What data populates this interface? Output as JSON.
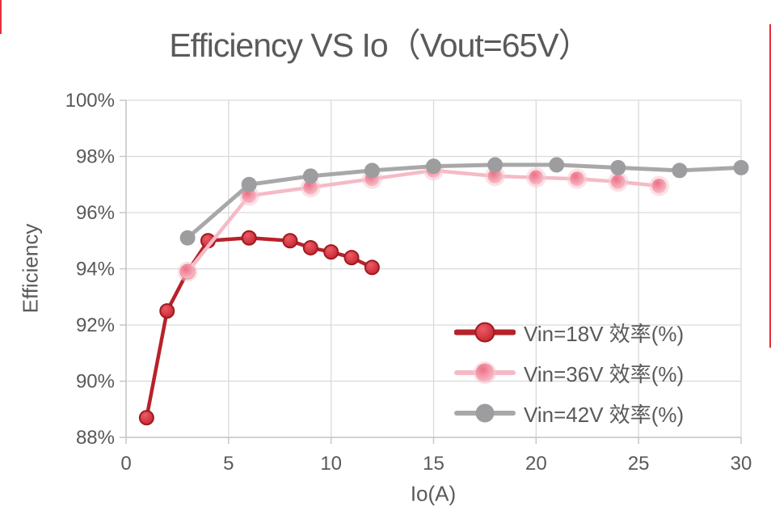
{
  "page": {
    "title": "Efficiency VS Io（Vout=65V）"
  },
  "colors": {
    "background": "#ffffff",
    "title_text": "#5a5a5a",
    "tick_label": "#595959",
    "gridline": "#dadada",
    "axis_line": "#c6c6c6",
    "edge_artifact": "#e2303b",
    "series_red": "#b7222a",
    "series_pink": "#f5bac6",
    "series_gray": "#a8a8a8"
  },
  "chart_data": {
    "type": "line",
    "title": "Efficiency VS Io（Vout=65V）",
    "xlabel": "Io(A)",
    "ylabel": "Efficiency",
    "xlim": [
      0,
      30
    ],
    "ylim": [
      88,
      100
    ],
    "x_ticks": [
      0,
      5,
      10,
      15,
      20,
      25,
      30
    ],
    "x_tick_labels": [
      "0",
      "5",
      "10",
      "15",
      "20",
      "25",
      "30"
    ],
    "y_ticks": [
      88,
      90,
      92,
      94,
      96,
      98,
      100
    ],
    "y_tick_labels": [
      "88%",
      "90%",
      "92%",
      "94%",
      "96%",
      "98%",
      "100%"
    ],
    "grid": true,
    "legend_position": "inside lower right",
    "series": [
      {
        "name": "Vin=18V 效率(%)",
        "x": [
          1,
          2,
          3,
          4,
          6,
          8,
          9,
          10,
          11,
          12
        ],
        "values": [
          88.7,
          92.5,
          93.9,
          95.0,
          95.1,
          95.0,
          94.75,
          94.6,
          94.4,
          94.05
        ],
        "line_color": "#b7222a",
        "line_width": 4.5,
        "marker_center": "#ec5b67",
        "marker_edge": "#c22129",
        "marker_stroke": "#9d1b21",
        "marker_radius": 8.5,
        "glow": false
      },
      {
        "name": "Vin=36V 效率(%)",
        "x": [
          3,
          6,
          9,
          12,
          15,
          18,
          20,
          22,
          24,
          26
        ],
        "values": [
          93.9,
          96.6,
          96.9,
          97.2,
          97.5,
          97.3,
          97.25,
          97.2,
          97.1,
          96.95
        ],
        "line_color": "#f5bac6",
        "line_width": 4.5,
        "marker_center": "#ed6e86",
        "marker_edge": "#f8c9d2",
        "marker_stroke": "none",
        "marker_radius": 9,
        "glow": true
      },
      {
        "name": "Vin=42V 效率(%)",
        "x": [
          3,
          6,
          9,
          12,
          15,
          18,
          21,
          24,
          27,
          30
        ],
        "values": [
          95.1,
          97.0,
          97.3,
          97.5,
          97.65,
          97.7,
          97.7,
          97.6,
          97.5,
          97.6
        ],
        "line_color": "#a8a8a8",
        "line_width": 5,
        "marker_center": "#9d9d9f",
        "marker_edge": "#9d9d9f",
        "marker_stroke": "none",
        "marker_radius": 9.5,
        "glow": false
      }
    ]
  }
}
